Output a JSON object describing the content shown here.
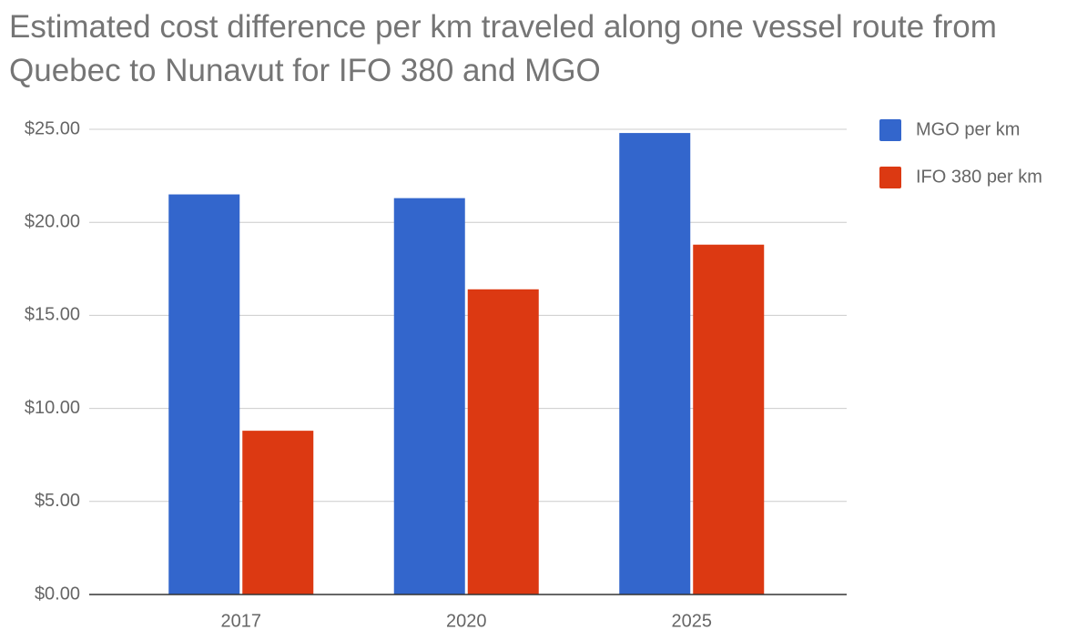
{
  "chart_data": {
    "type": "bar",
    "title": "Estimated cost difference per km traveled along one vessel route from Quebec to Nunavut for IFO 380 and MGO",
    "categories": [
      "2017",
      "2020",
      "2025"
    ],
    "series": [
      {
        "name": "MGO per km",
        "color": "#3366cc",
        "values": [
          21.5,
          21.3,
          24.8
        ]
      },
      {
        "name": "IFO 380 per km",
        "color": "#dc3912",
        "values": [
          8.8,
          16.4,
          18.8
        ]
      }
    ],
    "ylim": [
      0,
      25
    ],
    "yticks": [
      {
        "value": 0,
        "label": "$0.00"
      },
      {
        "value": 5,
        "label": "$5.00"
      },
      {
        "value": 10,
        "label": "$10.00"
      },
      {
        "value": 15,
        "label": "$15.00"
      },
      {
        "value": 20,
        "label": "$20.00"
      },
      {
        "value": 25,
        "label": "$25.00"
      }
    ],
    "grid": true,
    "legend": "right"
  }
}
